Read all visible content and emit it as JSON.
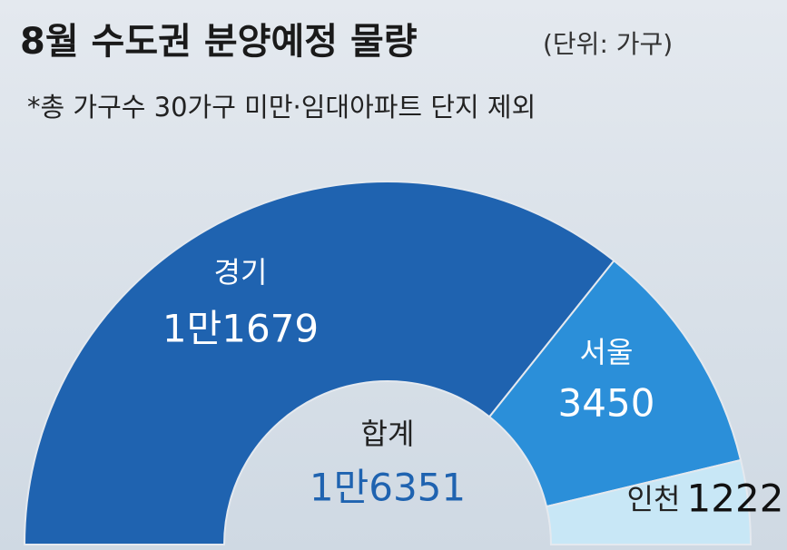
{
  "chart_data": {
    "type": "half-donut",
    "title": "8월 수도권 분양예정 물량",
    "unit": "(단위: 가구)",
    "subtitle": "*총 가구수 30가구 미만·임대아파트 단지 제외",
    "categories": [
      "경기",
      "서울",
      "인천"
    ],
    "values": [
      11679,
      3450,
      1222
    ],
    "value_labels": [
      "1만1679",
      "3450",
      "1222"
    ],
    "colors": [
      "#1f63b0",
      "#2b8fd9",
      "#c8e7f6"
    ],
    "total_title": "합계",
    "total": {
      "value": 16351,
      "label": "1만6351"
    }
  }
}
